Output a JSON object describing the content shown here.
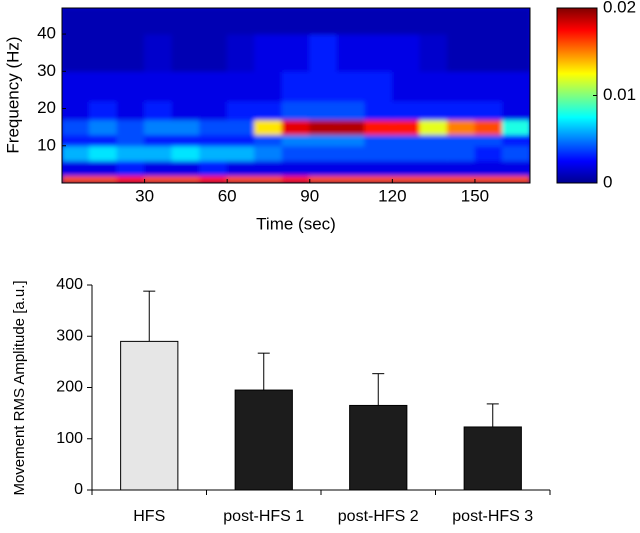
{
  "chart_data": [
    {
      "type": "heatmap",
      "xlabel": "Time (sec)",
      "ylabel": "Frequency (Hz)",
      "x_edges": [
        0,
        10,
        20,
        30,
        40,
        50,
        60,
        70,
        80,
        90,
        100,
        110,
        120,
        130,
        140,
        150,
        160,
        170
      ],
      "y_edges": [
        0,
        2,
        6,
        10,
        13,
        17,
        22,
        30,
        40,
        47
      ],
      "z": [
        [
          0.016,
          0.016,
          0.017,
          0.016,
          0.016,
          0.017,
          0.016,
          0.016,
          0.017,
          0.016,
          0.016,
          0.016,
          0.016,
          0.016,
          0.016,
          0.016,
          0.016
        ],
        [
          0.002,
          0.002,
          0.003,
          0.002,
          0.002,
          0.003,
          0.002,
          0.002,
          0.002,
          0.002,
          0.002,
          0.002,
          0.002,
          0.002,
          0.002,
          0.002,
          0.002
        ],
        [
          0.006,
          0.007,
          0.006,
          0.006,
          0.007,
          0.006,
          0.006,
          0.005,
          0.004,
          0.004,
          0.004,
          0.004,
          0.004,
          0.004,
          0.004,
          0.003,
          0.004
        ],
        [
          0.003,
          0.003,
          0.004,
          0.003,
          0.003,
          0.003,
          0.003,
          0.004,
          0.005,
          0.005,
          0.005,
          0.004,
          0.004,
          0.004,
          0.004,
          0.004,
          0.003
        ],
        [
          0.004,
          0.005,
          0.004,
          0.005,
          0.005,
          0.004,
          0.004,
          0.013,
          0.018,
          0.019,
          0.019,
          0.017,
          0.017,
          0.012,
          0.015,
          0.016,
          0.008
        ],
        [
          0.002,
          0.003,
          0.002,
          0.003,
          0.002,
          0.002,
          0.003,
          0.003,
          0.004,
          0.004,
          0.004,
          0.003,
          0.003,
          0.003,
          0.003,
          0.003,
          0.002
        ],
        [
          0.002,
          0.002,
          0.002,
          0.002,
          0.002,
          0.002,
          0.002,
          0.002,
          0.003,
          0.003,
          0.003,
          0.003,
          0.002,
          0.002,
          0.002,
          0.002,
          0.002
        ],
        [
          0.001,
          0.001,
          0.001,
          0.0015,
          0.001,
          0.001,
          0.0015,
          0.002,
          0.002,
          0.003,
          0.002,
          0.002,
          0.002,
          0.0015,
          0.001,
          0.001,
          0.001
        ],
        [
          0.001,
          0.001,
          0.001,
          0.001,
          0.001,
          0.001,
          0.001,
          0.001,
          0.001,
          0.001,
          0.001,
          0.001,
          0.001,
          0.001,
          0.001,
          0.001,
          0.001
        ]
      ],
      "xlim": [
        0,
        170
      ],
      "xticks": [
        30,
        60,
        90,
        120,
        150
      ],
      "ylim": [
        0,
        47
      ],
      "yticks": [
        10,
        20,
        30,
        40
      ],
      "zlim": [
        0,
        0.02
      ],
      "zticks": [
        0,
        0.01,
        0.02
      ],
      "colormap": "jet"
    },
    {
      "type": "bar",
      "ylabel": "Movement RMS Amplitude [a.u.]",
      "categories": [
        "HFS",
        "post-HFS 1",
        "post-HFS 2",
        "post-HFS 3"
      ],
      "values": [
        290,
        195,
        165,
        123
      ],
      "errors": [
        98,
        72,
        62,
        45
      ],
      "colors": [
        "#e6e6e6",
        "#1c1c1c",
        "#1c1c1c",
        "#1c1c1c"
      ],
      "ylim": [
        0,
        400
      ],
      "yticks": [
        0,
        100,
        200,
        300,
        400
      ]
    }
  ]
}
